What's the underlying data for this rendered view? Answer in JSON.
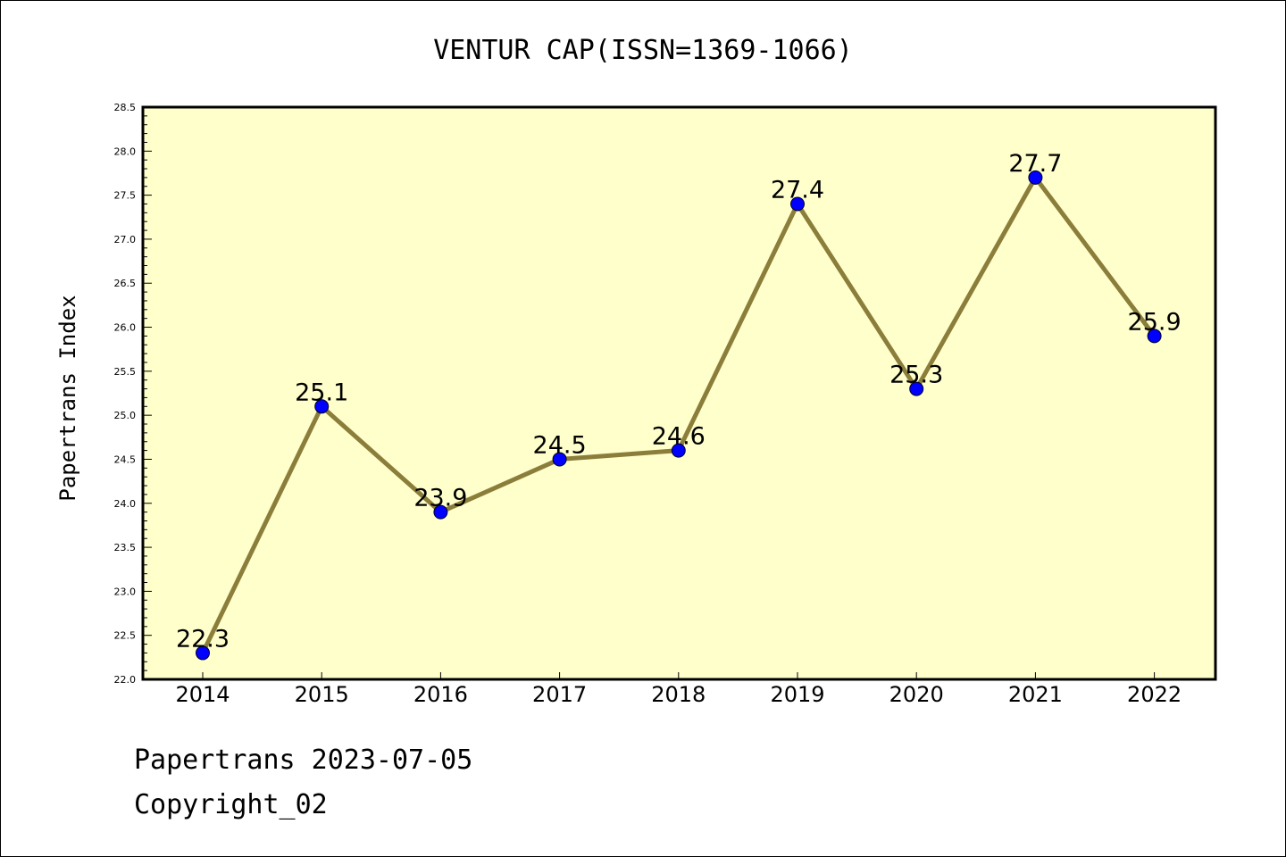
{
  "chart_data": {
    "type": "line",
    "title": "VENTUR CAP(ISSN=1369-1066)",
    "xlabel": "",
    "ylabel": "Papertrans Index",
    "categories": [
      "2014",
      "2015",
      "2016",
      "2017",
      "2018",
      "2019",
      "2020",
      "2021",
      "2022"
    ],
    "values": [
      22.3,
      25.1,
      23.9,
      24.5,
      24.6,
      27.4,
      25.3,
      27.7,
      25.9
    ],
    "data_labels": [
      "22.3",
      "25.1",
      "23.9",
      "24.5",
      "24.6",
      "27.4",
      "25.3",
      "27.7",
      "25.9"
    ],
    "ylim": [
      22.0,
      28.5
    ],
    "yticks": [
      "22.0",
      "22.5",
      "23.0",
      "23.5",
      "24.0",
      "24.5",
      "25.0",
      "25.5",
      "26.0",
      "26.5",
      "27.0",
      "27.5",
      "28.0",
      "28.5"
    ],
    "grid": false,
    "colors": {
      "plot_background": "#ffffcc",
      "line": "#8b7d3a",
      "marker": "#0000ff"
    }
  },
  "footer": {
    "line1": "Papertrans 2023-07-05",
    "line2": "Copyright_02"
  }
}
